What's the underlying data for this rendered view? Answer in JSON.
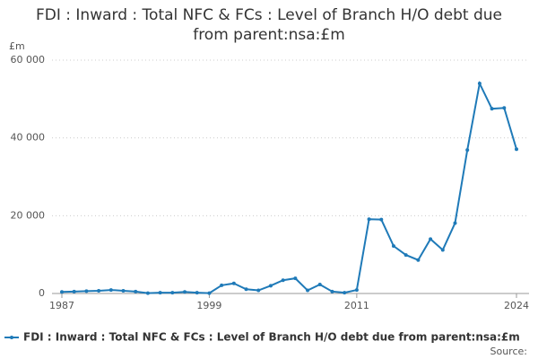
{
  "chart_data": {
    "type": "line",
    "title": "FDI : Inward : Total NFC & FCs : Level of Branch H/O debt due from parent:nsa:£m",
    "y_label": "£m",
    "source": "Source:",
    "x": [
      1987,
      1988,
      1989,
      1990,
      1991,
      1992,
      1993,
      1994,
      1995,
      1996,
      1997,
      1998,
      1999,
      2000,
      2001,
      2002,
      2003,
      2004,
      2005,
      2006,
      2007,
      2008,
      2009,
      2010,
      2011,
      2012,
      2013,
      2014,
      2015,
      2016,
      2017,
      2018,
      2019,
      2020,
      2021,
      2022,
      2023,
      2024
    ],
    "series": [
      {
        "name": "FDI : Inward : Total NFC & FCs : Level of Branch H/O debt due from parent:nsa:£m",
        "color": "#1f7ab8",
        "values": [
          400,
          500,
          600,
          700,
          900,
          700,
          500,
          100,
          200,
          200,
          400,
          200,
          100,
          2100,
          2600,
          1100,
          800,
          2000,
          3400,
          3900,
          800,
          2300,
          500,
          200,
          900,
          19100,
          19000,
          12200,
          9900,
          8600,
          14000,
          11200,
          18100,
          36900,
          54000,
          47500,
          47700,
          37100
        ]
      }
    ],
    "xlim": [
      1987,
      2024
    ],
    "xticks": [
      1987,
      1999,
      2011,
      2024
    ],
    "ylim": [
      0,
      60000
    ],
    "yticks": [
      {
        "value": 0,
        "label": "0"
      },
      {
        "value": 20000,
        "label": "20 000"
      },
      {
        "value": 40000,
        "label": "40 000"
      },
      {
        "value": 60000,
        "label": "60 000"
      }
    ],
    "grid": true
  }
}
